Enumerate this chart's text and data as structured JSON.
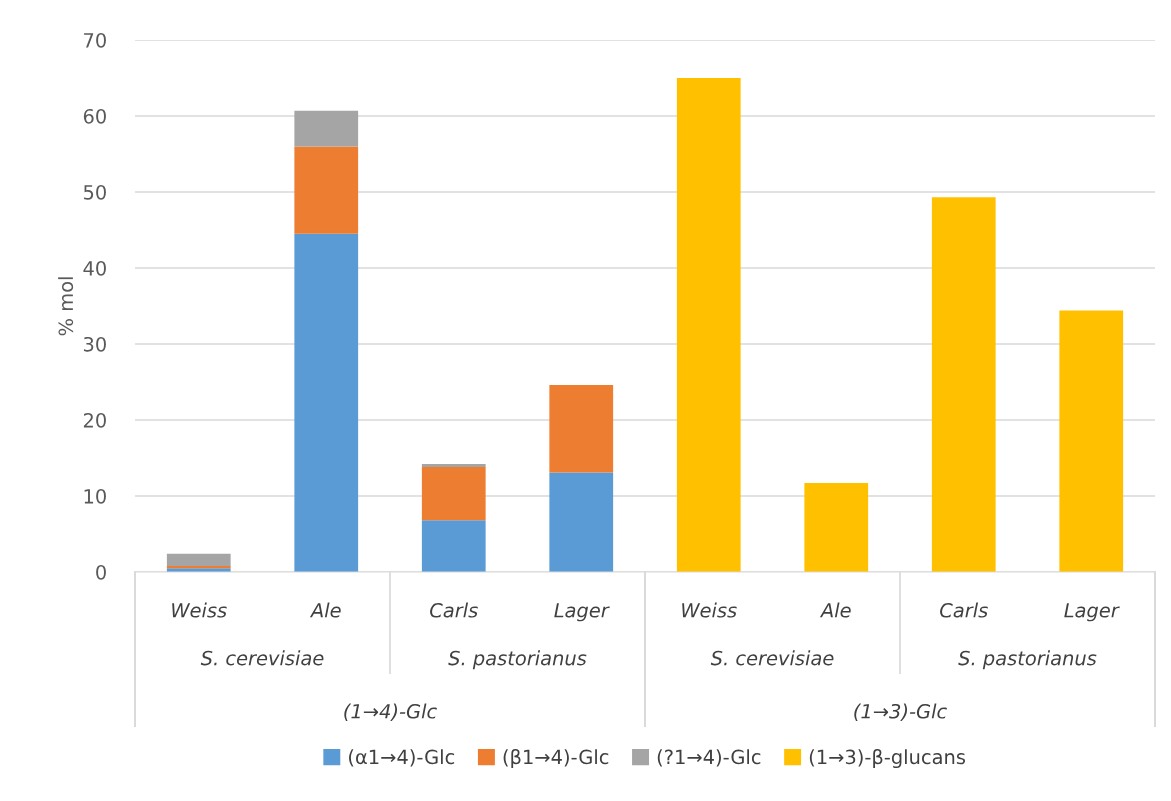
{
  "chart_data": {
    "type": "bar",
    "stacked": true,
    "ylabel": "% mol",
    "categories": [
      "Weiss",
      "Ale",
      "Carls",
      "Lager",
      "Weiss",
      "Ale",
      "Carls",
      "Lager"
    ],
    "series": [
      {
        "name": "(α1→4)-Glc",
        "color": "#5b9bd5",
        "values": [
          0.5,
          44.5,
          6.8,
          13.1,
          null,
          null,
          null,
          null
        ]
      },
      {
        "name": "(β1→4)-Glc",
        "color": "#ed7d31",
        "values": [
          0.3,
          11.5,
          7.0,
          11.5,
          null,
          null,
          null,
          null
        ]
      },
      {
        "name": "(?1→4)-Glc",
        "color": "#a5a5a5",
        "values": [
          1.6,
          4.7,
          0.4,
          null,
          null,
          null,
          null,
          null
        ]
      },
      {
        "name": "(1→3)-β-glucans",
        "color": "#ffc000",
        "values": [
          null,
          null,
          null,
          null,
          65,
          11.7,
          49.3,
          34.4
        ]
      }
    ],
    "annotations": [
      "S. cerevisiae",
      "S. pastorianus",
      "S. cerevisiae",
      "S. pastorianus",
      "(1→4)-Glc",
      "(1→3)-Glc"
    ],
    "ylim": [
      0,
      70
    ],
    "yticks": [
      0,
      10,
      20,
      30,
      40,
      50,
      60,
      70
    ],
    "grid": "y",
    "legend": "bottom"
  }
}
